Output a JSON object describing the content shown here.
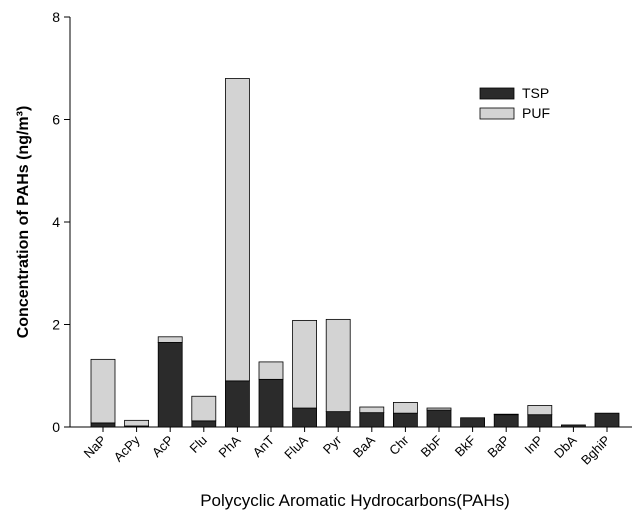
{
  "chart_data": {
    "type": "stacked_bar",
    "x_label": "Polycyclic Aromatic Hydrocarbons(PAHs)",
    "y_label": "Concentration of PAHs (ng/m³)",
    "categories": [
      "NaP",
      "AcPy",
      "AcP",
      "Flu",
      "PhA",
      "AnT",
      "FluA",
      "Pyr",
      "BaA",
      "Chr",
      "BbF",
      "BkF",
      "BaP",
      "InP",
      "DbA",
      "BghiP"
    ],
    "series": [
      {
        "name": "TSP",
        "color": "#2b2b2b",
        "values": [
          0.08,
          0.02,
          1.65,
          0.12,
          0.9,
          0.93,
          0.37,
          0.3,
          0.28,
          0.27,
          0.33,
          0.18,
          0.24,
          0.24,
          0.04,
          0.27
        ]
      },
      {
        "name": "PUF",
        "color": "#d3d3d3",
        "values": [
          1.24,
          0.11,
          0.11,
          0.48,
          5.9,
          0.34,
          1.71,
          1.8,
          0.11,
          0.21,
          0.04,
          0,
          0.01,
          0.18,
          0,
          0
        ]
      }
    ],
    "ylim": [
      0,
      8
    ],
    "yticks": [
      0,
      2,
      4,
      6,
      8
    ],
    "legend": "upper right"
  }
}
